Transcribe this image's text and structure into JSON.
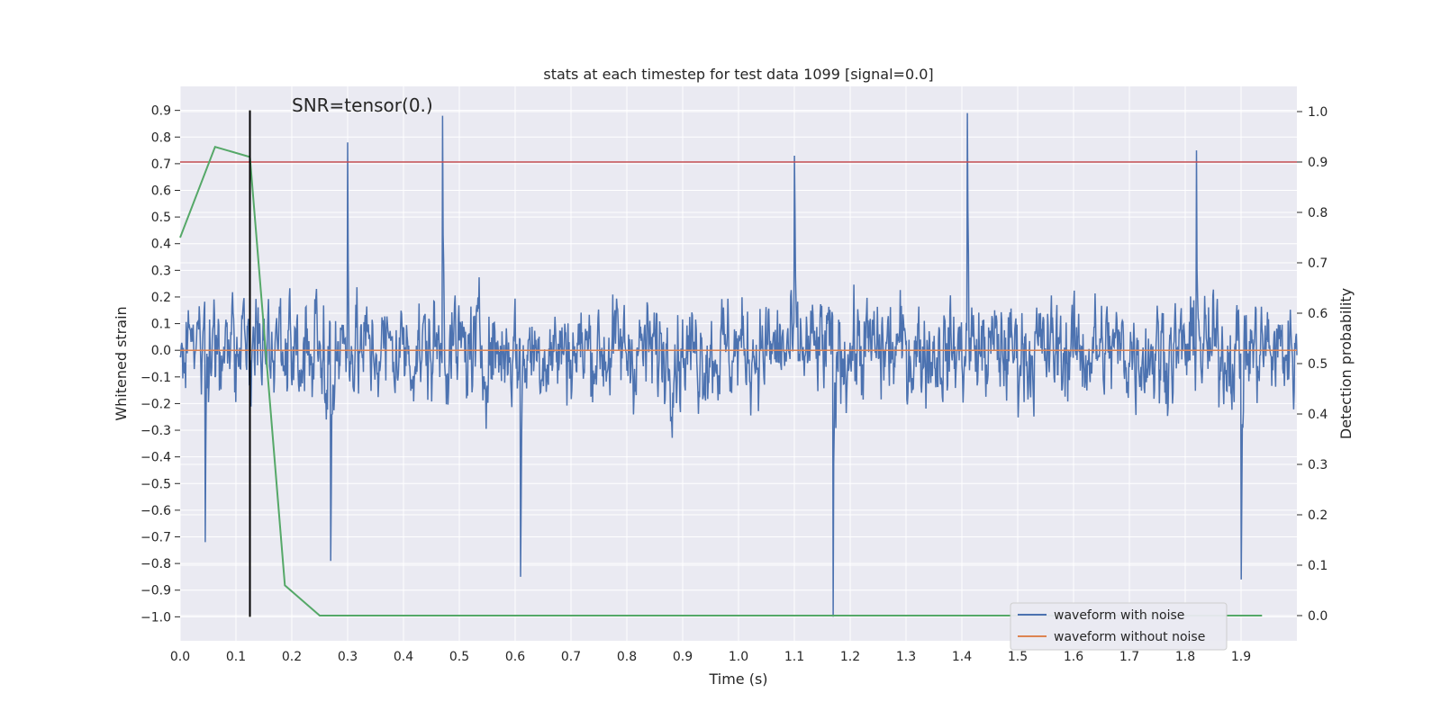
{
  "chart_data": {
    "type": "line",
    "title": "stats at each timestep for test data 1099 [signal=0.0]",
    "xlabel": "Time (s)",
    "ylabel": "Whitened strain",
    "y2label": "Detection probability",
    "xlim": [
      0.0,
      2.0
    ],
    "ylim": [
      -1.09,
      0.99
    ],
    "y2lim": [
      -0.05,
      1.05
    ],
    "xticks": [
      "0.0",
      "0.1",
      "0.2",
      "0.3",
      "0.4",
      "0.5",
      "0.6",
      "0.7",
      "0.8",
      "0.9",
      "1.0",
      "1.1",
      "1.2",
      "1.3",
      "1.4",
      "1.5",
      "1.6",
      "1.7",
      "1.8",
      "1.9"
    ],
    "yticks": [
      "0.9",
      "0.8",
      "0.7",
      "0.6",
      "0.5",
      "0.4",
      "0.3",
      "0.2",
      "0.1",
      "0.0",
      "−0.1",
      "−0.2",
      "−0.3",
      "−0.4",
      "−0.5",
      "−0.6",
      "−0.7",
      "−0.8",
      "−0.9",
      "−1.0"
    ],
    "y2ticks": [
      "1.0",
      "0.9",
      "0.8",
      "0.7",
      "0.6",
      "0.5",
      "0.4",
      "0.3",
      "0.2",
      "0.1",
      "0.0"
    ],
    "annotation": "SNR=tensor(0.)",
    "threshold": {
      "value": 0.9,
      "axis": "right",
      "color": "#c44e52"
    },
    "vline": {
      "x": 0.125,
      "ymin": -1.0,
      "ymax": 0.9,
      "color": "#000000"
    },
    "grid": true,
    "legend_position": "lower-right",
    "series": [
      {
        "name": "waveform with noise",
        "color": "#4c72b0",
        "kind": "noise",
        "samples": 2048,
        "x_start": 0.0,
        "x_end": 2.0,
        "y_range": [
          -1.0,
          0.89
        ],
        "spikes": [
          {
            "x": 0.47,
            "y": 0.88
          },
          {
            "x": 1.41,
            "y": 0.89
          },
          {
            "x": 1.17,
            "y": -1.0
          },
          {
            "x": 0.61,
            "y": -0.85
          },
          {
            "x": 1.82,
            "y": 0.75
          },
          {
            "x": 1.1,
            "y": 0.73
          },
          {
            "x": 0.3,
            "y": 0.78
          },
          {
            "x": 1.9,
            "y": -0.86
          },
          {
            "x": 0.27,
            "y": -0.79
          },
          {
            "x": 0.045,
            "y": -0.72
          }
        ]
      },
      {
        "name": "waveform without noise",
        "color": "#dd8452",
        "x": [
          0.0,
          2.0
        ],
        "y": [
          0.0,
          0.0
        ]
      },
      {
        "name": "detection probability",
        "color": "#55a868",
        "axis": "right",
        "x": [
          0.0,
          0.0625,
          0.125,
          0.1875,
          0.25,
          0.3125,
          0.5,
          1.0,
          1.5,
          1.9375
        ],
        "y": [
          0.75,
          0.93,
          0.91,
          0.06,
          0.0,
          0.0,
          0.0,
          0.0,
          0.0,
          0.0
        ]
      }
    ],
    "legend": [
      "waveform with noise",
      "waveform without noise"
    ]
  }
}
